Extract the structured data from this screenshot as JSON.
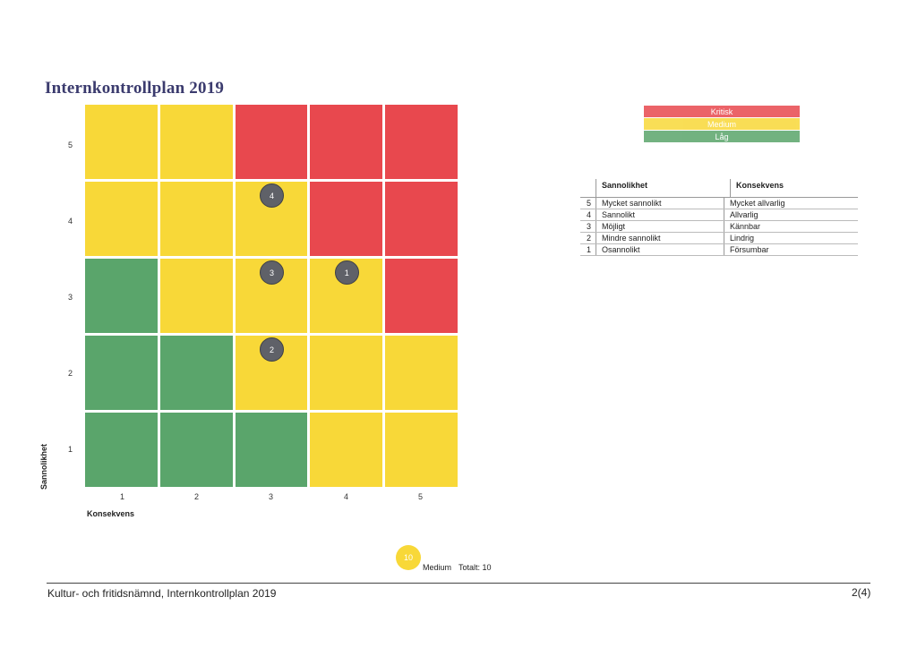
{
  "title": "Internkontrollplan 2019",
  "matrix": {
    "y_ticks": [
      "5",
      "4",
      "3",
      "2",
      "1"
    ],
    "x_ticks": [
      "1",
      "2",
      "3",
      "4",
      "5"
    ],
    "y_label": "Sannolikhet",
    "x_label": "Konsekvens",
    "rows": [
      [
        "yellow",
        "yellow",
        "red",
        "red",
        "red"
      ],
      [
        "yellow",
        "yellow",
        "yellow",
        "red",
        "red"
      ],
      [
        "green",
        "yellow",
        "yellow",
        "yellow",
        "red"
      ],
      [
        "green",
        "green",
        "yellow",
        "yellow",
        "yellow"
      ],
      [
        "green",
        "green",
        "green",
        "yellow",
        "yellow"
      ]
    ],
    "markers": [
      {
        "label": "4",
        "sannolikhet": 4,
        "konsekvens": 3
      },
      {
        "label": "3",
        "sannolikhet": 3,
        "konsekvens": 3
      },
      {
        "label": "1",
        "sannolikhet": 3,
        "konsekvens": 4
      },
      {
        "label": "2",
        "sannolikhet": 2,
        "konsekvens": 3
      }
    ]
  },
  "legend": {
    "kritisk": "Kritisk",
    "medium": "Medium",
    "lag": "Låg"
  },
  "scale": {
    "header_l": "Sannolikhet",
    "header_k": "Konsekvens",
    "rows": [
      {
        "n": "5",
        "l": "Mycket sannolikt",
        "k": "Mycket allvarlig"
      },
      {
        "n": "4",
        "l": "Sannolikt",
        "k": "Allvarlig"
      },
      {
        "n": "3",
        "l": "Möjligt",
        "k": "Kännbar"
      },
      {
        "n": "2",
        "l": "Mindre sannolikt",
        "k": "Lindrig"
      },
      {
        "n": "1",
        "l": "Osannolikt",
        "k": "Försumbar"
      }
    ]
  },
  "summary": {
    "count": "10",
    "level": "Medium",
    "total": "Totalt: 10"
  },
  "footer": {
    "left": "Kultur- och fritidsnämnd, Internkontrollplan 2019",
    "right": "2(4)"
  },
  "colors": {
    "red": "#e8484e",
    "yellow": "#f8d838",
    "green": "#5aa56b",
    "marker": "#5f6168"
  }
}
